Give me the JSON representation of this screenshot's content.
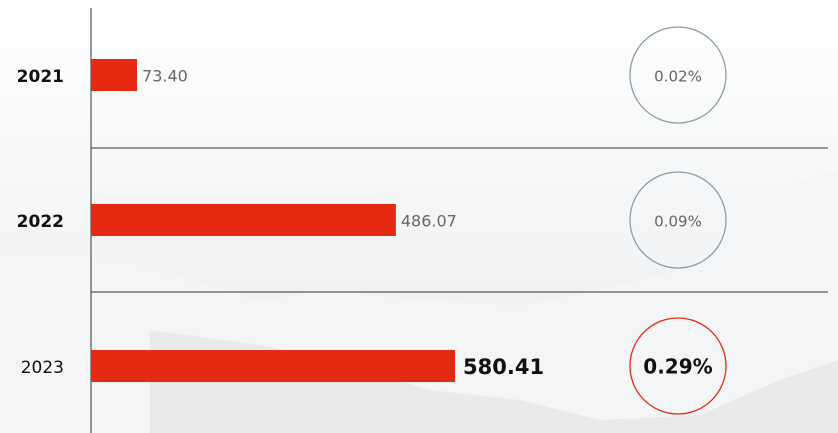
{
  "chart_data": {
    "type": "hbar",
    "categories": [
      "2021",
      "2022",
      "2023"
    ],
    "values": [
      73.4,
      486.07,
      580.41
    ],
    "value_labels": [
      "73.40",
      "486.07",
      "580.41"
    ],
    "share_values": [
      0.02,
      0.09,
      0.29
    ],
    "share_labels": [
      "0.02%",
      "0.09%",
      "0.29%"
    ],
    "color": "#e62a12",
    "xlim": [
      0,
      1175
    ],
    "highlight_index": 2
  }
}
